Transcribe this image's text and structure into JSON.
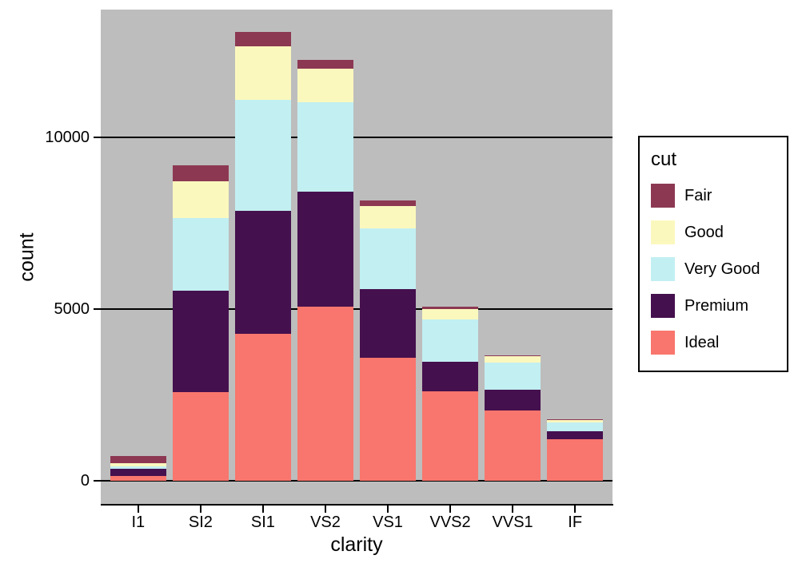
{
  "figure": {
    "background": "#FFFFFF",
    "panel_background": "#BDBDBD",
    "gridline_color": "#000000",
    "axis_line_color": "#000000",
    "text_color": "#000000"
  },
  "chart_data": {
    "type": "bar",
    "stacked": true,
    "orientation": "vertical",
    "title": "",
    "xlabel": "clarity",
    "ylabel": "count",
    "categories": [
      "I1",
      "SI2",
      "SI1",
      "VS2",
      "VS1",
      "VVS2",
      "VVS1",
      "IF"
    ],
    "series": [
      {
        "name": "Ideal",
        "color": "#F8766D",
        "values": [
          146,
          2598,
          4282,
          5071,
          3589,
          2606,
          2047,
          1212
        ]
      },
      {
        "name": "Premium",
        "color": "#45104E",
        "values": [
          205,
          2949,
          3575,
          3357,
          1989,
          870,
          616,
          230
        ]
      },
      {
        "name": "Very Good",
        "color": "#C2EFF2",
        "values": [
          84,
          2100,
          3240,
          2591,
          1775,
          1235,
          789,
          268
        ]
      },
      {
        "name": "Good",
        "color": "#FBF8BE",
        "values": [
          96,
          1081,
          1560,
          978,
          648,
          286,
          186,
          71
        ]
      },
      {
        "name": "Fair",
        "color": "#8D3853",
        "values": [
          210,
          466,
          408,
          261,
          170,
          69,
          17,
          9
        ]
      }
    ],
    "totals": [
      741,
      9194,
      13065,
      12258,
      8171,
      5066,
      3655,
      1790
    ],
    "yticks": [
      0,
      5000,
      10000
    ],
    "ytick_labels": [
      "0",
      "5000",
      "10000"
    ],
    "ylim": [
      -686,
      13718
    ],
    "grid": true,
    "legend": {
      "title": "cut",
      "position": "right",
      "entries": [
        {
          "label": "Fair",
          "color": "#8D3853"
        },
        {
          "label": "Good",
          "color": "#FBF8BE"
        },
        {
          "label": "Very Good",
          "color": "#C2EFF2"
        },
        {
          "label": "Premium",
          "color": "#45104E"
        },
        {
          "label": "Ideal",
          "color": "#F8766D"
        }
      ]
    }
  }
}
